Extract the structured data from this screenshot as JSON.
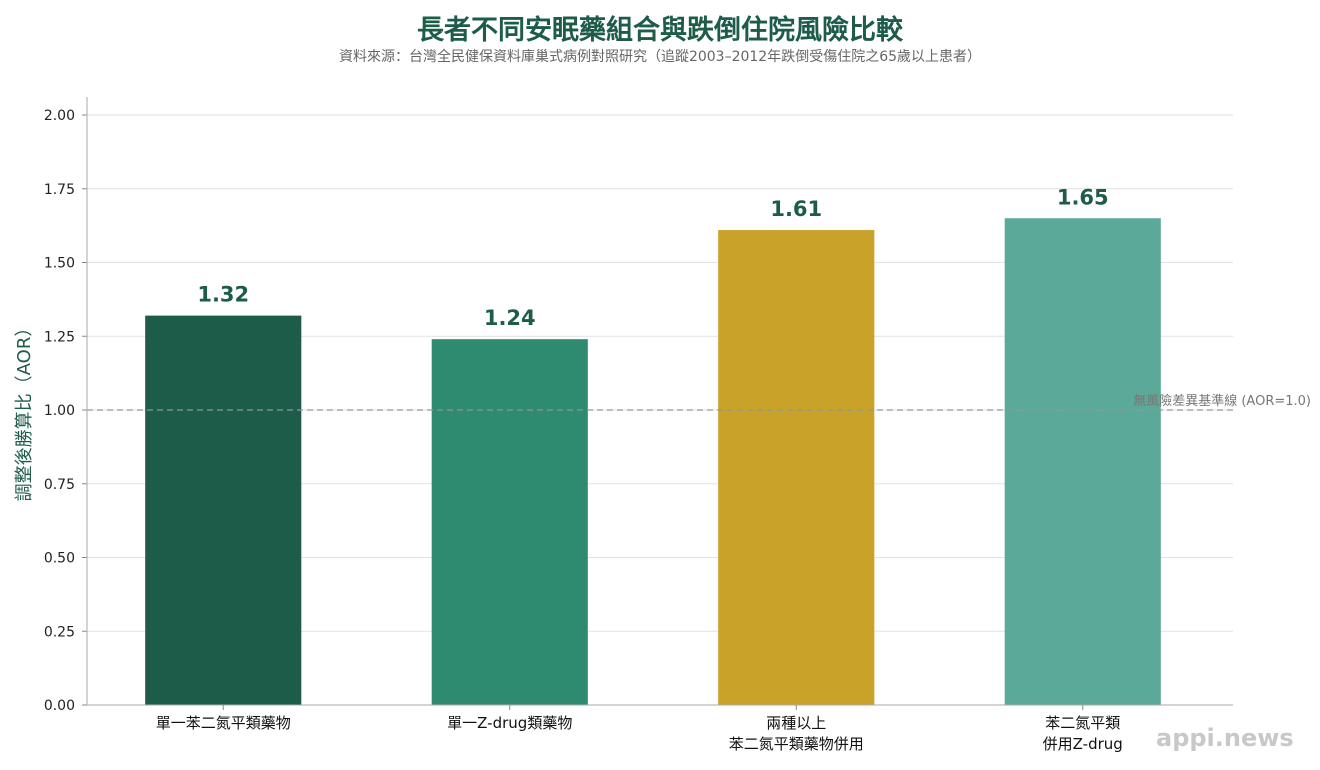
{
  "chart_data": {
    "type": "bar",
    "title": "長者不同安眠藥組合與跌倒住院風險比較",
    "subtitle": "資料來源：台灣全民健保資料庫巢式病例對照研究（追蹤2003–2012年跌倒受傷住院之65歲以上患者）",
    "ylabel": "調整後勝算比（AOR）",
    "xlabel": "",
    "ylim": [
      0,
      2.0
    ],
    "yticks": [
      "0.00",
      "0.25",
      "0.50",
      "0.75",
      "1.00",
      "1.25",
      "1.50",
      "1.75",
      "2.00"
    ],
    "categories": [
      [
        "單一苯二氮平類藥物"
      ],
      [
        "單一Z-drug類藥物"
      ],
      [
        "兩種以上",
        "苯二氮平類藥物併用"
      ],
      [
        "苯二氮平類",
        "併用Z-drug"
      ]
    ],
    "values": [
      1.32,
      1.24,
      1.61,
      1.65
    ],
    "value_labels": [
      "1.32",
      "1.24",
      "1.61",
      "1.65"
    ],
    "bar_colors": [
      "#1e5c4a",
      "#2e8b6f",
      "#c9a22a",
      "#5ba998"
    ],
    "reference_line": {
      "value": 1.0,
      "label": "無風險差異基準線 (AOR=1.0)",
      "style": "dashed"
    },
    "grid": true,
    "legend": "none"
  },
  "watermark": "appi.news"
}
